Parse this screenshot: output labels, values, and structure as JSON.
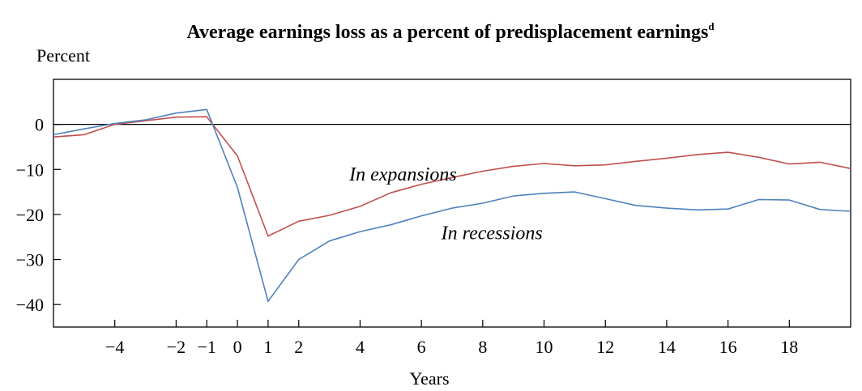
{
  "chart_data": {
    "type": "line",
    "title": "Average earnings loss as a percent of predisplacement earnings",
    "title_superscript": "d",
    "ylabel": "Percent",
    "xlabel": "Years",
    "xlim": [
      -6,
      20
    ],
    "ylim": [
      -45,
      10
    ],
    "x_ticks": [
      -4,
      -2,
      -1,
      0,
      1,
      2,
      4,
      6,
      8,
      10,
      12,
      14,
      16,
      18
    ],
    "x_tick_labels": [
      "−4",
      "−2",
      "−1",
      "0",
      "1",
      "2",
      "4",
      "6",
      "8",
      "10",
      "12",
      "14",
      "16",
      "18"
    ],
    "y_ticks": [
      0,
      -10,
      -20,
      -30,
      -40
    ],
    "y_tick_labels": [
      "0",
      "−10",
      "−20",
      "−30",
      "−40"
    ],
    "zero_line": true,
    "grid": false,
    "series": [
      {
        "name": "In expansions",
        "color": "#c0504d",
        "x": [
          -6,
          -5,
          -4,
          -3,
          -2,
          -1,
          0,
          1,
          2,
          3,
          4,
          5,
          6,
          7,
          8,
          9,
          10,
          11,
          12,
          13,
          14,
          15,
          16,
          17,
          18,
          19,
          20
        ],
        "values": [
          -2.8,
          -2.3,
          0.0,
          0.8,
          1.6,
          1.7,
          -7.0,
          -24.8,
          -21.5,
          -20.2,
          -18.2,
          -15.2,
          -13.3,
          -11.8,
          -10.4,
          -9.3,
          -8.7,
          -9.2,
          -9.0,
          -8.2,
          -7.5,
          -6.7,
          -6.2,
          -7.3,
          -8.8,
          -8.4,
          -9.8
        ],
        "annotation": {
          "text": "In expansions",
          "x": 5.4,
          "y": -12.5
        }
      },
      {
        "name": "In recessions",
        "color": "#4f81bd",
        "x": [
          -6,
          -5,
          -4,
          -3,
          -2,
          -1,
          0,
          1,
          2,
          3,
          4,
          5,
          6,
          7,
          8,
          9,
          10,
          11,
          12,
          13,
          14,
          15,
          16,
          17,
          18,
          19,
          20
        ],
        "values": [
          -2.3,
          -1.0,
          0.2,
          1.0,
          2.5,
          3.3,
          -14.0,
          -39.3,
          -30.0,
          -25.9,
          -23.8,
          -22.3,
          -20.3,
          -18.6,
          -17.5,
          -15.9,
          -15.3,
          -15.0,
          -16.5,
          -18.0,
          -18.6,
          -19.0,
          -18.8,
          -16.7,
          -16.8,
          -18.9,
          -19.3
        ],
        "annotation": {
          "text": "In recessions",
          "x": 8.3,
          "y": -25.5
        }
      }
    ]
  }
}
